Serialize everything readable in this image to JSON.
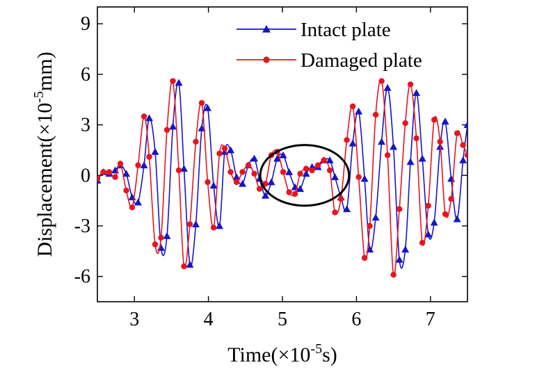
{
  "chart_data": {
    "type": "line",
    "title": "",
    "xlabel": {
      "main": "Time(×10",
      "sup": "-5",
      "tail": "s)"
    },
    "ylabel": {
      "main": "Displacement(×10",
      "sup": "-5",
      "tail": "mm)"
    },
    "xlim": [
      2.5,
      7.5
    ],
    "ylim": [
      -7.5,
      10
    ],
    "xticks": [
      3,
      4,
      5,
      6,
      7
    ],
    "yticks": [
      -6,
      -3,
      0,
      3,
      6,
      9
    ],
    "xtick_labels": [
      "3",
      "4",
      "5",
      "6",
      "7"
    ],
    "ytick_labels": [
      "-6",
      "-3",
      "0",
      "3",
      "6",
      "9"
    ],
    "legend_position": "top-right",
    "grid": false,
    "annotations": [
      {
        "type": "ellipse",
        "center": [
          5.3,
          0.0
        ],
        "rx": 0.6,
        "ry": 1.8,
        "color": "#000000"
      }
    ],
    "series": [
      {
        "name": "Intact plate",
        "color": "#1515c8",
        "marker": "triangle",
        "x": [
          2.5,
          2.58,
          2.66,
          2.74,
          2.81,
          2.89,
          2.97,
          3.05,
          3.13,
          3.2,
          3.28,
          3.36,
          3.44,
          3.52,
          3.6,
          3.67,
          3.75,
          3.83,
          3.91,
          3.99,
          4.07,
          4.15,
          4.22,
          4.3,
          4.38,
          4.46,
          4.54,
          4.62,
          4.69,
          4.77,
          4.85,
          4.93,
          5.01,
          5.09,
          5.17,
          5.24,
          5.32,
          5.4,
          5.48,
          5.56,
          5.64,
          5.71,
          5.79,
          5.87,
          5.95,
          6.03,
          6.11,
          6.18,
          6.26,
          6.34,
          6.42,
          6.5,
          6.58,
          6.66,
          6.73,
          6.81,
          6.89,
          6.97,
          7.05,
          7.13,
          7.2,
          7.28,
          7.36,
          7.44,
          7.5
        ],
        "y": [
          -0.3,
          0.2,
          0.1,
          0.3,
          0.6,
          0.1,
          -1.3,
          -1.6,
          0.6,
          3.4,
          1.4,
          -4.3,
          -3.6,
          2.9,
          5.5,
          0.4,
          -5.3,
          -2.9,
          2.8,
          4.0,
          -0.6,
          -3.0,
          1.4,
          1.5,
          -0.1,
          -0.5,
          0.6,
          1.0,
          -0.2,
          -1.2,
          -0.4,
          1.0,
          1.2,
          0.2,
          -0.7,
          -0.8,
          0.1,
          0.5,
          0.5,
          0.9,
          0.9,
          -0.1,
          -1.3,
          -2.0,
          1.9,
          3.8,
          -0.2,
          -4.4,
          -2.5,
          2.0,
          5.2,
          1.7,
          -5.0,
          -4.4,
          0.8,
          4.9,
          1.0,
          -3.5,
          -2.8,
          1.7,
          3.2,
          -0.2,
          -2.6,
          0.9,
          3.0
        ]
      },
      {
        "name": "Damaged plate",
        "color": "#e8141e",
        "marker": "circle",
        "x": [
          2.5,
          2.58,
          2.66,
          2.74,
          2.81,
          2.89,
          2.97,
          3.05,
          3.13,
          3.2,
          3.28,
          3.36,
          3.44,
          3.52,
          3.6,
          3.67,
          3.75,
          3.83,
          3.91,
          3.99,
          4.07,
          4.15,
          4.22,
          4.3,
          4.38,
          4.46,
          4.54,
          4.62,
          4.69,
          4.77,
          4.85,
          4.93,
          5.01,
          5.09,
          5.17,
          5.24,
          5.32,
          5.4,
          5.48,
          5.56,
          5.64,
          5.71,
          5.79,
          5.87,
          5.95,
          6.03,
          6.11,
          6.18,
          6.26,
          6.34,
          6.42,
          6.5,
          6.58,
          6.66,
          6.73,
          6.81,
          6.89,
          6.97,
          7.05,
          7.13,
          7.2,
          7.28,
          7.36,
          7.44,
          7.5
        ],
        "y": [
          -0.2,
          0.2,
          0.2,
          -0.1,
          0.7,
          -0.9,
          -1.9,
          0.6,
          3.5,
          1.1,
          -4.1,
          -3.7,
          2.7,
          5.6,
          0.3,
          -5.4,
          -2.9,
          2.0,
          4.3,
          -0.4,
          -3.1,
          1.3,
          1.6,
          0.2,
          -0.4,
          0.2,
          0.6,
          0.1,
          -0.8,
          -0.5,
          1.2,
          1.4,
          0.2,
          -1.0,
          -1.1,
          0.1,
          0.4,
          0.3,
          0.6,
          0.9,
          0.3,
          -2.2,
          -1.4,
          2.1,
          4.1,
          -0.1,
          -4.9,
          -3.0,
          3.6,
          5.6,
          1.2,
          -5.9,
          -2.0,
          3.1,
          5.4,
          2.2,
          -4.0,
          -1.8,
          3.3,
          2.0,
          -2.3,
          -1.4,
          2.5,
          1.8,
          1.2
        ]
      }
    ]
  }
}
